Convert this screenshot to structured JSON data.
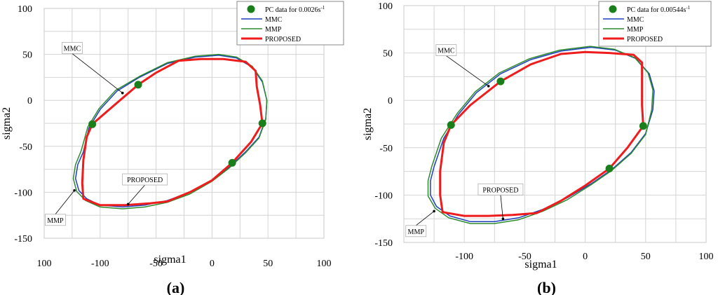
{
  "chart_data": [
    {
      "type": "line",
      "caption": "(a)",
      "xlabel": "sigma1",
      "ylabel": "sigma2",
      "x_tick_labels": [
        "100",
        "-100",
        "-50",
        "0",
        "50",
        "100"
      ],
      "y_tick_labels": [
        "100",
        "50",
        "0",
        "-50",
        "-100",
        "-150"
      ],
      "xlim": [
        -150,
        100
      ],
      "ylim": [
        -150,
        100
      ],
      "grid": true,
      "legend": {
        "placement": "top-right",
        "entries": [
          {
            "label": "PC data for 0.0026s",
            "superscript": "-1",
            "marker": "dot",
            "color": "#1a7f1a"
          },
          {
            "label": "MMC",
            "color": "#1f3fbf"
          },
          {
            "label": "MMP",
            "color": "#2e8b2e"
          },
          {
            "label": "PROPOSED",
            "color": "#ee1c1c"
          }
        ]
      },
      "annotations": [
        {
          "text": "MMC",
          "x": -125,
          "y": 57,
          "tx": -80,
          "ty": 8
        },
        {
          "text": "PROPOSED",
          "x": -60,
          "y": -86,
          "tx": -75,
          "ty": -113
        },
        {
          "text": "MMP",
          "x": -140,
          "y": -130,
          "tx": -123,
          "ty": -98
        }
      ],
      "pc_points": [
        [
          -66,
          17
        ],
        [
          -107,
          -26
        ],
        [
          45,
          -25
        ],
        [
          18,
          -68
        ]
      ],
      "series": [
        {
          "name": "MMC",
          "color": "#1f3fbf",
          "width": 1.5,
          "points": [
            [
              -115,
              -56
            ],
            [
              -120,
              -70
            ],
            [
              -122,
              -85
            ],
            [
              -119,
              -98
            ],
            [
              -112,
              -107
            ],
            [
              -100,
              -114
            ],
            [
              -80,
              -116
            ],
            [
              -60,
              -114
            ],
            [
              -40,
              -109
            ],
            [
              -20,
              -100
            ],
            [
              0,
              -87
            ],
            [
              15,
              -73
            ],
            [
              30,
              -56
            ],
            [
              42,
              -40
            ],
            [
              48,
              -20
            ],
            [
              49,
              0
            ],
            [
              45,
              20
            ],
            [
              36,
              36
            ],
            [
              22,
              46
            ],
            [
              6,
              49
            ],
            [
              -15,
              47
            ],
            [
              -40,
              40
            ],
            [
              -65,
              25
            ],
            [
              -85,
              10
            ],
            [
              -100,
              -10
            ],
            [
              -110,
              -30
            ],
            [
              -115,
              -56
            ]
          ]
        },
        {
          "name": "MMP",
          "color": "#2e8b2e",
          "width": 1.5,
          "points": [
            [
              -117,
              -55
            ],
            [
              -122,
              -70
            ],
            [
              -124,
              -85
            ],
            [
              -121,
              -99
            ],
            [
              -113,
              -109
            ],
            [
              -100,
              -116
            ],
            [
              -80,
              -118
            ],
            [
              -60,
              -116
            ],
            [
              -40,
              -111
            ],
            [
              -20,
              -102
            ],
            [
              0,
              -88
            ],
            [
              15,
              -74
            ],
            [
              30,
              -57
            ],
            [
              42,
              -41
            ],
            [
              48,
              -21
            ],
            [
              49,
              0
            ],
            [
              45,
              21
            ],
            [
              36,
              37
            ],
            [
              22,
              47
            ],
            [
              6,
              50
            ],
            [
              -15,
              48
            ],
            [
              -40,
              41
            ],
            [
              -65,
              26
            ],
            [
              -86,
              11
            ],
            [
              -101,
              -9
            ],
            [
              -111,
              -29
            ],
            [
              -117,
              -55
            ]
          ]
        },
        {
          "name": "PROPOSED",
          "color": "#ee1c1c",
          "width": 3,
          "points": [
            [
              -107,
              -26
            ],
            [
              -112,
              -40
            ],
            [
              -115,
              -65
            ],
            [
              -116,
              -90
            ],
            [
              -115,
              -107
            ],
            [
              -100,
              -114
            ],
            [
              -78,
              -114
            ],
            [
              -55,
              -112
            ],
            [
              -40,
              -110
            ],
            [
              -20,
              -100
            ],
            [
              0,
              -87
            ],
            [
              18,
              -68
            ],
            [
              35,
              -45
            ],
            [
              45,
              -25
            ],
            [
              43,
              -5
            ],
            [
              40,
              15
            ],
            [
              39,
              32
            ],
            [
              30,
              42
            ],
            [
              10,
              45
            ],
            [
              -10,
              45
            ],
            [
              -30,
              43
            ],
            [
              -50,
              30
            ],
            [
              -66,
              17
            ],
            [
              -90,
              -8
            ],
            [
              -107,
              -26
            ]
          ]
        }
      ]
    },
    {
      "type": "line",
      "caption": "(b)",
      "xlabel": "sigma1",
      "ylabel": "sigma2",
      "x_tick_labels": [
        "-100",
        "-50",
        "0",
        "50",
        "100"
      ],
      "y_tick_labels": [
        "100",
        "50",
        "0",
        "-50",
        "-100",
        "-150"
      ],
      "xlim": [
        -150,
        100
      ],
      "ylim": [
        -150,
        100
      ],
      "grid": true,
      "legend": {
        "placement": "top-right",
        "entries": [
          {
            "label": "PC data for 0.00544s",
            "superscript": "-1",
            "marker": "dot",
            "color": "#1a7f1a"
          },
          {
            "label": "MMC",
            "color": "#1f3fbf"
          },
          {
            "label": "MMP",
            "color": "#2e8b2e"
          },
          {
            "label": "PROPOSED",
            "color": "#ee1c1c"
          }
        ]
      },
      "annotations": [
        {
          "text": "MMC",
          "x": -115,
          "y": 53,
          "tx": -80,
          "ty": 15
        },
        {
          "text": "PROPOSED",
          "x": -70,
          "y": -94,
          "tx": -68,
          "ty": -125
        },
        {
          "text": "MMP",
          "x": -140,
          "y": -138,
          "tx": -125,
          "ty": -117
        }
      ],
      "pc_points": [
        [
          -70,
          20
        ],
        [
          -111,
          -26
        ],
        [
          48,
          -27
        ],
        [
          20,
          -72
        ]
      ],
      "series": [
        {
          "name": "MMC",
          "color": "#1f3fbf",
          "width": 1.5,
          "points": [
            [
              -125,
              -70
            ],
            [
              -128,
              -85
            ],
            [
              -128,
              -100
            ],
            [
              -123,
              -112
            ],
            [
              -112,
              -122
            ],
            [
              -95,
              -128
            ],
            [
              -75,
              -128
            ],
            [
              -55,
              -124
            ],
            [
              -35,
              -115
            ],
            [
              -15,
              -103
            ],
            [
              5,
              -88
            ],
            [
              22,
              -73
            ],
            [
              38,
              -55
            ],
            [
              50,
              -35
            ],
            [
              56,
              -10
            ],
            [
              57,
              10
            ],
            [
              53,
              28
            ],
            [
              42,
              44
            ],
            [
              25,
              53
            ],
            [
              5,
              56
            ],
            [
              -20,
              52
            ],
            [
              -45,
              43
            ],
            [
              -70,
              28
            ],
            [
              -90,
              8
            ],
            [
              -105,
              -15
            ],
            [
              -117,
              -40
            ],
            [
              -125,
              -70
            ]
          ]
        },
        {
          "name": "MMP",
          "color": "#2e8b2e",
          "width": 1.5,
          "points": [
            [
              -127,
              -70
            ],
            [
              -130,
              -85
            ],
            [
              -130,
              -101
            ],
            [
              -124,
              -114
            ],
            [
              -113,
              -124
            ],
            [
              -95,
              -130
            ],
            [
              -75,
              -130
            ],
            [
              -55,
              -126
            ],
            [
              -35,
              -117
            ],
            [
              -15,
              -105
            ],
            [
              5,
              -89
            ],
            [
              22,
              -74
            ],
            [
              38,
              -56
            ],
            [
              50,
              -36
            ],
            [
              55,
              -10
            ],
            [
              56,
              11
            ],
            [
              52,
              29
            ],
            [
              41,
              45
            ],
            [
              24,
              54
            ],
            [
              4,
              57
            ],
            [
              -21,
              53
            ],
            [
              -46,
              44
            ],
            [
              -71,
              29
            ],
            [
              -91,
              9
            ],
            [
              -106,
              -14
            ],
            [
              -119,
              -40
            ],
            [
              -127,
              -70
            ]
          ]
        },
        {
          "name": "PROPOSED",
          "color": "#ee1c1c",
          "width": 3,
          "points": [
            [
              -111,
              -26
            ],
            [
              -117,
              -45
            ],
            [
              -120,
              -75
            ],
            [
              -120,
              -100
            ],
            [
              -118,
              -118
            ],
            [
              -100,
              -122
            ],
            [
              -80,
              -122
            ],
            [
              -60,
              -121
            ],
            [
              -40,
              -119
            ],
            [
              -20,
              -106
            ],
            [
              0,
              -90
            ],
            [
              20,
              -72
            ],
            [
              35,
              -50
            ],
            [
              48,
              -27
            ],
            [
              47,
              -5
            ],
            [
              47,
              20
            ],
            [
              47,
              40
            ],
            [
              40,
              48
            ],
            [
              20,
              50
            ],
            [
              0,
              51
            ],
            [
              -20,
              49
            ],
            [
              -45,
              38
            ],
            [
              -70,
              20
            ],
            [
              -95,
              -5
            ],
            [
              -111,
              -26
            ]
          ]
        }
      ]
    }
  ]
}
